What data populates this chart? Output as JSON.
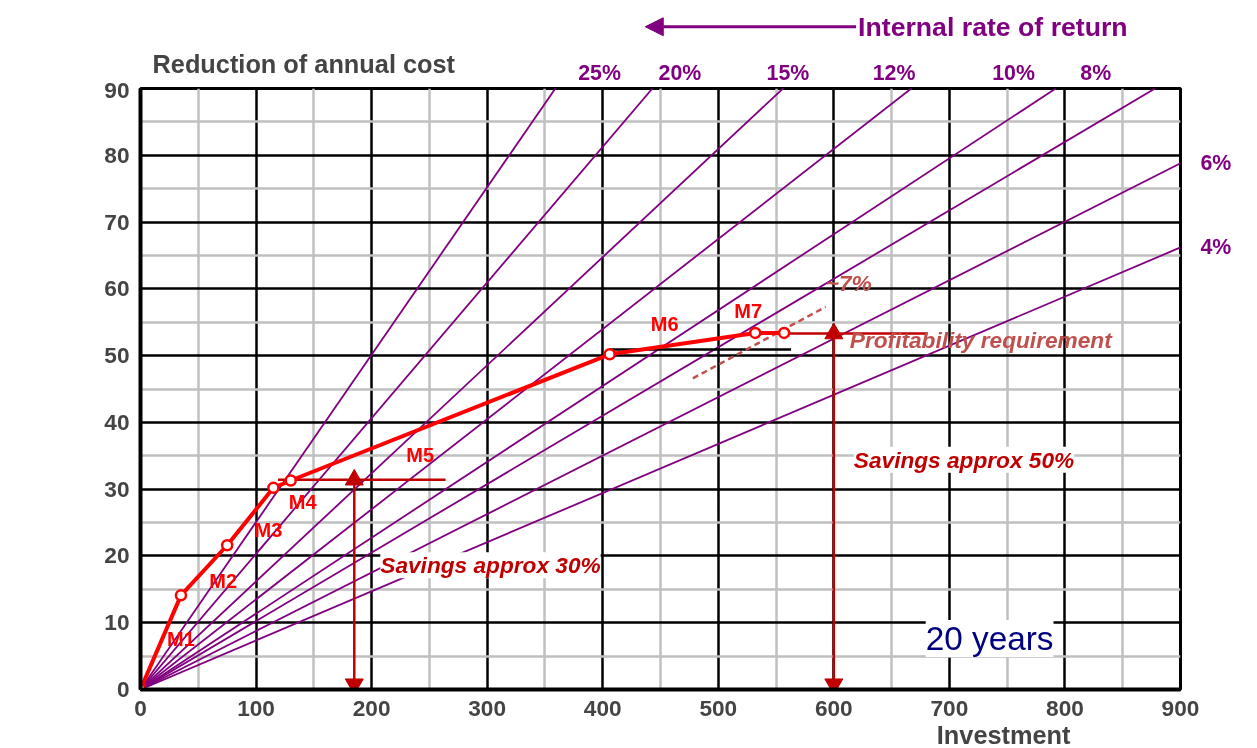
{
  "chart_data": {
    "type": "line",
    "xlabel": "Investment",
    "ylabel": "Reduction of annual cost",
    "xlim": [
      0,
      900
    ],
    "ylim": [
      0,
      90
    ],
    "xticks": [
      0,
      100,
      200,
      300,
      400,
      500,
      600,
      700,
      800,
      900
    ],
    "yticks": [
      0,
      10,
      20,
      30,
      40,
      50,
      60,
      70,
      80,
      90
    ],
    "grid": true,
    "series": [
      {
        "name": "25%",
        "color": "#800080",
        "x": [
          0,
          359
        ],
        "values": [
          0,
          90
        ]
      },
      {
        "name": "20%",
        "color": "#800080",
        "x": [
          0,
          443
        ],
        "values": [
          0,
          90
        ]
      },
      {
        "name": "15%",
        "color": "#800080",
        "x": [
          0,
          556
        ],
        "values": [
          0,
          90
        ]
      },
      {
        "name": "12%",
        "color": "#800080",
        "x": [
          0,
          667
        ],
        "values": [
          0,
          90
        ]
      },
      {
        "name": "10%",
        "color": "#800080",
        "x": [
          0,
          792
        ],
        "values": [
          0,
          90
        ]
      },
      {
        "name": "8%",
        "color": "#800080",
        "x": [
          0,
          878
        ],
        "values": [
          0,
          90
        ]
      },
      {
        "name": "6%",
        "color": "#800080",
        "x": [
          0,
          900
        ],
        "values": [
          0,
          78.8
        ]
      },
      {
        "name": "4%",
        "color": "#800080",
        "x": [
          0,
          900
        ],
        "values": [
          0,
          66.2
        ]
      },
      {
        "color": "#000000",
        "x": [
          406,
          563
        ],
        "values": [
          50.9,
          50.9
        ]
      },
      {
        "color": "#c0504d",
        "x": [
          478,
          593
        ],
        "values": [
          46.6,
          57.3
        ],
        "line_style": "dashed"
      },
      {
        "color": "#c00000",
        "x": [
          119,
          264
        ],
        "values": [
          31.4,
          31.4
        ]
      },
      {
        "color": "#c00000",
        "x": [
          532,
          681
        ],
        "values": [
          53.3,
          53.3
        ]
      },
      {
        "color": "#c00000",
        "x": [
          185,
          185
        ],
        "values": [
          31.4,
          0.8
        ],
        "marker": "triangle"
      },
      {
        "color": "#c00000",
        "x": [
          600,
          600
        ],
        "values": [
          53.3,
          0.8
        ],
        "marker": "triangle"
      },
      {
        "color": "#ff0000",
        "x": [
          0,
          35,
          75,
          115,
          130,
          406,
          532,
          557
        ],
        "values": [
          0,
          14.1,
          21.6,
          30.2,
          31.3,
          50.2,
          53.4,
          53.4
        ],
        "marker": "circle"
      }
    ],
    "annotations": [
      "Internal rate of return",
      "20 years",
      {
        "text": "M1",
        "x": 35,
        "y": 14.1
      },
      {
        "text": "M2",
        "x": 75,
        "y": 21.6
      },
      {
        "text": "M3",
        "x": 115,
        "y": 30.2
      },
      {
        "text": "M4",
        "x": 130,
        "y": 31.3
      },
      {
        "text": "M5",
        "x": 242,
        "y": 39
      },
      {
        "text": "M6",
        "x": 406,
        "y": 50.2
      },
      {
        "text": "M7",
        "x": 532,
        "y": 53.4
      },
      {
        "text": "~7%",
        "x": 593,
        "y": 57.3
      },
      {
        "text": "Profitability requirement",
        "x": 600,
        "y": 53.3
      },
      {
        "text": "Savings approx 30%",
        "x": 185,
        "y": 18.6
      },
      {
        "text": "Savings approx 50%",
        "x": 600,
        "y": 34.4
      }
    ]
  }
}
